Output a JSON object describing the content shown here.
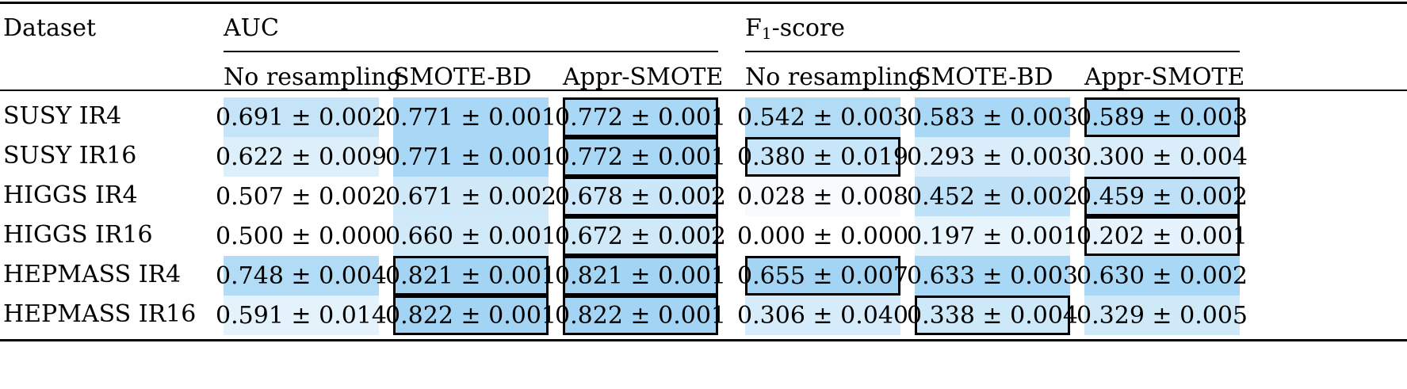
{
  "table": {
    "header": {
      "dataset": "Dataset",
      "group_auc": "AUC",
      "group_f1_main": "F",
      "group_f1_sub": "1",
      "group_f1_rest": "-score",
      "subcolumns": [
        "No resampling",
        "SMOTE-BD",
        "Appr-SMOTE",
        "No resampling",
        "SMOTE-BD",
        "Appr-SMOTE"
      ]
    },
    "rows": [
      {
        "label": "SUSY IR4",
        "cells": [
          {
            "text": "0.691 ± 0.002",
            "color": "#c6e4f8",
            "boxed": false
          },
          {
            "text": "0.771 ± 0.001",
            "color": "#a9d8f6",
            "boxed": false
          },
          {
            "text": "0.772 ± 0.001",
            "color": "#a9d8f6",
            "boxed": true
          },
          {
            "text": "0.542 ± 0.003",
            "color": "#b2dcf6",
            "boxed": false
          },
          {
            "text": "0.583 ± 0.003",
            "color": "#a9d8f6",
            "boxed": false
          },
          {
            "text": "0.589 ± 0.003",
            "color": "#a9d8f6",
            "boxed": true
          }
        ]
      },
      {
        "label": "SUSY IR16",
        "cells": [
          {
            "text": "0.622 ± 0.009",
            "color": "#dceffb",
            "boxed": false
          },
          {
            "text": "0.771 ± 0.001",
            "color": "#a9d8f6",
            "boxed": false
          },
          {
            "text": "0.772 ± 0.001",
            "color": "#a9d8f6",
            "boxed": true
          },
          {
            "text": "0.380 ± 0.019",
            "color": "#c8e6f9",
            "boxed": true
          },
          {
            "text": "0.293 ± 0.003",
            "color": "#d9eefa",
            "boxed": false
          },
          {
            "text": "0.300 ± 0.004",
            "color": "#d9eefa",
            "boxed": false
          }
        ]
      },
      {
        "label": "HIGGS IR4",
        "cells": [
          {
            "text": "0.507 ± 0.002",
            "color": "#ffffff",
            "boxed": false
          },
          {
            "text": "0.671 ± 0.002",
            "color": "#cfe9f9",
            "boxed": false
          },
          {
            "text": "0.678 ± 0.002",
            "color": "#cbe7f9",
            "boxed": true
          },
          {
            "text": "0.028 ± 0.008",
            "color": "#f7fbfe",
            "boxed": false
          },
          {
            "text": "0.452 ± 0.002",
            "color": "#bfe1f7",
            "boxed": false
          },
          {
            "text": "0.459 ± 0.002",
            "color": "#bfe1f7",
            "boxed": true
          }
        ]
      },
      {
        "label": "HIGGS IR16",
        "cells": [
          {
            "text": "0.500 ± 0.000",
            "color": "#ffffff",
            "boxed": false
          },
          {
            "text": "0.660 ± 0.001",
            "color": "#d1eaf9",
            "boxed": false
          },
          {
            "text": "0.672 ± 0.002",
            "color": "#cfe9f9",
            "boxed": true
          },
          {
            "text": "0.000 ± 0.000",
            "color": "#ffffff",
            "boxed": false
          },
          {
            "text": "0.197 ± 0.001",
            "color": "#e8f4fc",
            "boxed": false
          },
          {
            "text": "0.202 ± 0.001",
            "color": "#e6f3fc",
            "boxed": true
          }
        ]
      },
      {
        "label": "HEPMASS IR4",
        "cells": [
          {
            "text": "0.748 ± 0.004",
            "color": "#b2dcf6",
            "boxed": false
          },
          {
            "text": "0.821 ± 0.001",
            "color": "#a4d4f4",
            "boxed": true
          },
          {
            "text": "0.821 ± 0.001",
            "color": "#a4d4f4",
            "boxed": true
          },
          {
            "text": "0.655 ± 0.007",
            "color": "#a4d4f4",
            "boxed": true
          },
          {
            "text": "0.633 ± 0.003",
            "color": "#a9d8f6",
            "boxed": false
          },
          {
            "text": "0.630 ± 0.002",
            "color": "#a9d8f6",
            "boxed": false
          }
        ]
      },
      {
        "label": "HEPMASS IR16",
        "cells": [
          {
            "text": "0.591 ± 0.014",
            "color": "#e3f2fb",
            "boxed": false
          },
          {
            "text": "0.822 ± 0.001",
            "color": "#a4d4f4",
            "boxed": true
          },
          {
            "text": "0.822 ± 0.001",
            "color": "#a4d4f4",
            "boxed": true
          },
          {
            "text": "0.306 ± 0.040",
            "color": "#d6ecfa",
            "boxed": false
          },
          {
            "text": "0.338 ± 0.004",
            "color": "#cde8f9",
            "boxed": true
          },
          {
            "text": "0.329 ± 0.005",
            "color": "#cfe9f9",
            "boxed": false
          }
        ]
      }
    ]
  }
}
